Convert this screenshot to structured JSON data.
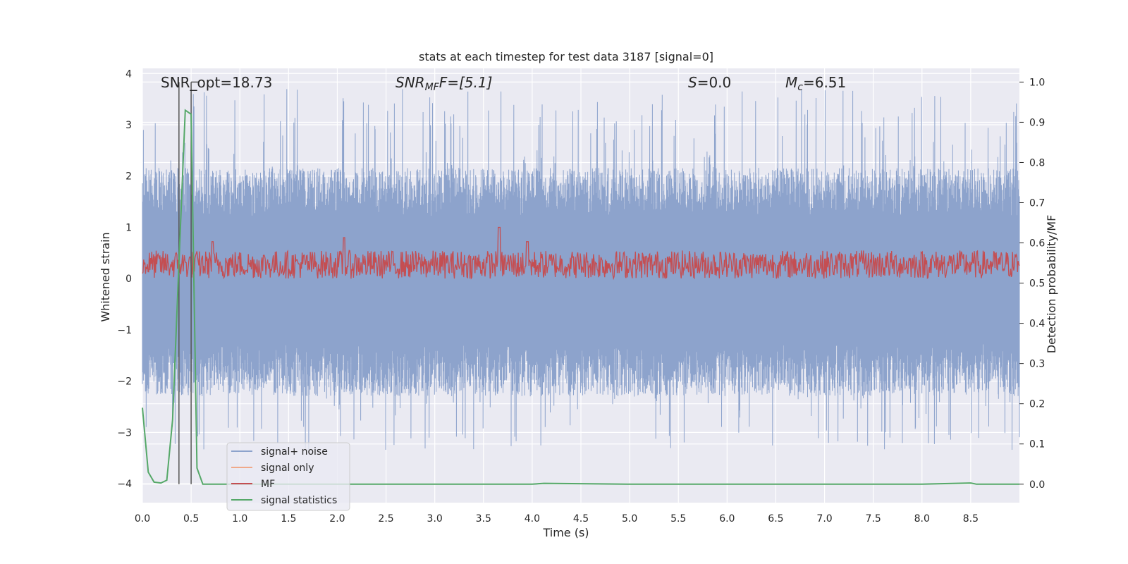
{
  "chart_data": {
    "type": "line",
    "title": "stats at each timestep for test data 3187 [signal=0]",
    "xlabel": "Time (s)",
    "ylabel_left": "Whitened strain",
    "ylabel_right": "Detection probability/MF",
    "xlim": [
      0.0,
      9.0
    ],
    "ylim_left": [
      -4.37,
      4.1
    ],
    "ylim_right": [
      -0.046,
      1.034
    ],
    "xticks": [
      "0.0",
      "0.5",
      "1.0",
      "1.5",
      "2.0",
      "2.5",
      "3.0",
      "3.5",
      "4.0",
      "4.5",
      "5.0",
      "5.5",
      "6.0",
      "6.5",
      "7.0",
      "7.5",
      "8.0",
      "8.5"
    ],
    "yticks_left": [
      "4",
      "3",
      "2",
      "1",
      "0",
      "−1",
      "−2",
      "−3",
      "−4"
    ],
    "yticks_right": [
      "1.0",
      "0.9",
      "0.8",
      "0.7",
      "0.6",
      "0.5",
      "0.4",
      "0.3",
      "0.2",
      "0.1",
      "0.0"
    ],
    "grid": true,
    "legend_placement": "lower-left",
    "annotations": {
      "snr_opt": "SNR_opt=18.73",
      "snr_mf_main": "SNR",
      "snr_mf_sub": "MF",
      "snr_mf_tail": "F=[5.1]",
      "s_main": "S",
      "s_tail": "=0.0",
      "mc_main": "M",
      "mc_sub": "c",
      "mc_tail": "=6.51"
    },
    "vertical_markers_s": [
      0.375,
      0.5
    ],
    "series": [
      {
        "name": "signal+ noise",
        "color": "#8da3cc",
        "axis": "left",
        "description_noise_band": [
          -1.7,
          1.6
        ],
        "peak_max": 3.7,
        "peak_min": -3.35
      },
      {
        "name": "signal only",
        "color": "#f0a98a",
        "axis": "left",
        "values": [
          0
        ]
      },
      {
        "name": "MF",
        "color": "#c44e52",
        "axis": "left",
        "band": [
          0.0,
          0.55
        ],
        "peaks": [
          [
            3.66,
            1.0
          ],
          [
            3.95,
            0.72
          ],
          [
            0.72,
            0.72
          ],
          [
            2.07,
            0.8
          ]
        ]
      },
      {
        "name": "signal statistics",
        "color": "#55a868",
        "axis": "right",
        "x": [
          0.0,
          0.06,
          0.12,
          0.19,
          0.25,
          0.31,
          0.375,
          0.44,
          0.5,
          0.56,
          0.62,
          0.69,
          1.0,
          2.0,
          3.0,
          4.0,
          4.12,
          5.0,
          6.0,
          7.0,
          8.0,
          8.5,
          8.56,
          9.0
        ],
        "values": [
          0.19,
          0.03,
          0.005,
          0.003,
          0.01,
          0.16,
          0.55,
          0.93,
          0.92,
          0.04,
          0.0,
          0.0,
          0.0,
          0.0,
          0.0,
          0.0,
          0.002,
          0.0,
          0.0,
          0.0,
          0.0,
          0.003,
          0.0,
          0.0
        ]
      }
    ]
  },
  "colors": {
    "plot_bg": "#eaeaf2",
    "grid": "#ffffff",
    "text": "#262626",
    "marker": "#555555"
  }
}
